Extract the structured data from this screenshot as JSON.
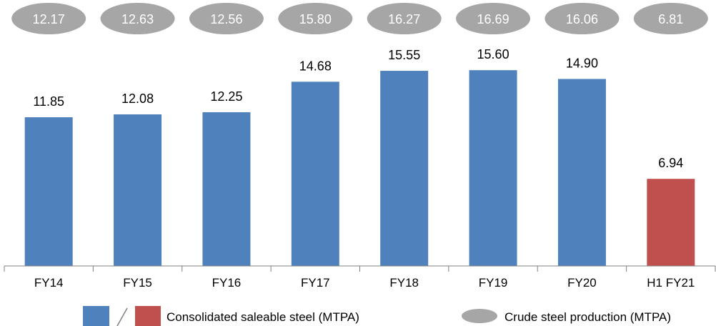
{
  "chart_data": {
    "type": "bar",
    "categories": [
      "FY14",
      "FY15",
      "FY16",
      "FY17",
      "FY18",
      "FY19",
      "FY20",
      "H1 FY21"
    ],
    "series": [
      {
        "name": "Consolidated saleable steel (MTPA)",
        "values": [
          11.85,
          12.08,
          12.25,
          14.68,
          15.55,
          15.6,
          14.9,
          6.94
        ],
        "value_labels": [
          "11.85",
          "12.08",
          "12.25",
          "14.68",
          "15.55",
          "15.60",
          "14.90",
          "6.94"
        ]
      },
      {
        "name": "Crude steel production (MTPA)",
        "values": [
          12.17,
          12.63,
          12.56,
          15.8,
          16.27,
          16.69,
          16.06,
          6.81
        ],
        "value_labels": [
          "12.17",
          "12.63",
          "12.56",
          "15.80",
          "16.27",
          "16.69",
          "16.06",
          "6.81"
        ]
      }
    ],
    "ylim": [
      0,
      18
    ],
    "grid": false,
    "legend_position": "bottom",
    "legend": {
      "bar_label": "Consolidated saleable steel (MTPA)",
      "ellipse_label": "Crude steel production (MTPA)"
    },
    "colors": {
      "bar_blue": "#4f81bd",
      "bar_red": "#c0504d",
      "ellipse_gray": "#a6a6a6",
      "ellipse_text": "#ffffff",
      "label_text": "#000000",
      "axis": "#808080"
    }
  }
}
